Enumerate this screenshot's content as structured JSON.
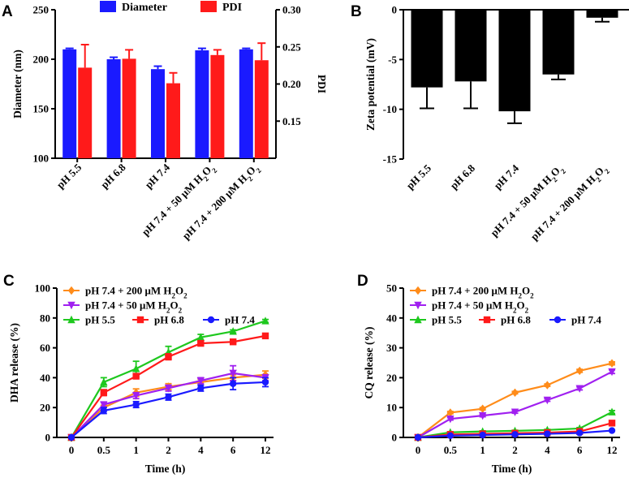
{
  "chart_data": [
    {
      "panel": "A",
      "type": "bar",
      "categories": [
        "pH 5.5",
        "pH 6.8",
        "pH 7.4",
        "pH 7.4 + 50 μM H₂O₂",
        "pH 7.4 + 200 μM H₂O₂"
      ],
      "ylabel": "Diameter (nm)",
      "y2label": "PDI",
      "ylim": [
        100,
        250
      ],
      "y2lim": [
        0.1,
        0.3
      ],
      "yticks": [
        "100",
        "150",
        "200",
        "250"
      ],
      "y2ticks": [
        "0.15",
        "0.20",
        "0.25",
        "0.30"
      ],
      "series": [
        {
          "name": "Diameter",
          "axis": "left",
          "color": "#1a1aff",
          "values": [
            210,
            200,
            190,
            209,
            210
          ],
          "err": [
            1.0,
            2.0,
            3.0,
            2.0,
            1.0
          ]
        },
        {
          "name": "PDI",
          "axis": "right",
          "color": "#ff1a1a",
          "values": [
            0.222,
            0.234,
            0.201,
            0.239,
            0.232
          ],
          "err": [
            0.031,
            0.012,
            0.014,
            0.007,
            0.023
          ]
        }
      ]
    },
    {
      "panel": "B",
      "type": "bar",
      "categories": [
        "pH 5.5",
        "pH 6.8",
        "pH 7.4",
        "pH 7.4 + 50 μM H₂O₂",
        "pH 7.4 + 200 μM H₂O₂"
      ],
      "ylabel": "Zeta potential (mV)",
      "ylim": [
        -15,
        0
      ],
      "yticks": [
        "-15",
        "-10",
        "-5",
        "0"
      ],
      "color": "#000000",
      "values": [
        -7.8,
        -7.2,
        -10.2,
        -6.5,
        -0.8
      ],
      "err": [
        2.1,
        2.7,
        1.2,
        0.5,
        0.4
      ]
    },
    {
      "panel": "C",
      "type": "line",
      "x": [
        "0",
        "0.5",
        "1",
        "2",
        "4",
        "6",
        "12"
      ],
      "xlabel": "Time (h)",
      "ylabel": "DHA release (%)",
      "ylim": [
        0,
        100
      ],
      "yticks": [
        "0",
        "20",
        "40",
        "60",
        "80",
        "100"
      ],
      "series": [
        {
          "name": "pH 7.4 + 200 μM H₂O₂",
          "color": "#ff8c1a",
          "marker": "diamond",
          "values": [
            0,
            20,
            30,
            34,
            37,
            40,
            42
          ],
          "err": [
            0,
            1.5,
            2.5,
            2,
            2,
            2,
            2.5
          ]
        },
        {
          "name": "pH 7.4 + 50 μM H₂O₂",
          "color": "#a020f0",
          "marker": "triangle-down",
          "values": [
            0,
            22,
            28,
            33,
            38,
            43,
            40
          ],
          "err": [
            0,
            1.5,
            2,
            2,
            2,
            5,
            2
          ]
        },
        {
          "name": "pH 5.5",
          "color": "#1ec81e",
          "marker": "triangle-up",
          "values": [
            0,
            37,
            46,
            57,
            67,
            71,
            78
          ],
          "err": [
            0,
            3,
            5,
            4,
            2,
            1,
            1
          ]
        },
        {
          "name": "pH 6.8",
          "color": "#ff1a1a",
          "marker": "square",
          "values": [
            0,
            30,
            41,
            54,
            63,
            64,
            68
          ],
          "err": [
            0,
            2,
            1,
            2,
            1,
            1,
            1
          ]
        },
        {
          "name": "pH 7.4",
          "color": "#1a1aff",
          "marker": "circle",
          "values": [
            0,
            18,
            22,
            27,
            33,
            36,
            37
          ],
          "err": [
            0,
            2,
            2,
            2,
            2,
            4,
            3
          ]
        }
      ]
    },
    {
      "panel": "D",
      "type": "line",
      "x": [
        "0",
        "0.5",
        "1",
        "2",
        "4",
        "6",
        "12"
      ],
      "xlabel": "Time (h)",
      "ylabel": "CQ release (%)",
      "ylim": [
        0,
        50
      ],
      "yticks": [
        "0",
        "10",
        "20",
        "30",
        "40",
        "50"
      ],
      "series": [
        {
          "name": "pH 7.4 + 200 μM H₂O₂",
          "color": "#ff8c1a",
          "marker": "diamond",
          "values": [
            0,
            8.3,
            9.6,
            15,
            17.5,
            22.3,
            24.8
          ],
          "err": [
            0,
            0.4,
            0.4,
            0.4,
            0.4,
            0.5,
            0.5
          ]
        },
        {
          "name": "pH 7.4 + 50 μM H₂O₂",
          "color": "#a020f0",
          "marker": "triangle-down",
          "values": [
            0,
            6.2,
            7.3,
            8.5,
            12.5,
            16.4,
            22
          ],
          "err": [
            0,
            0.4,
            0.4,
            0.4,
            0.4,
            0.5,
            0.6
          ]
        },
        {
          "name": "pH 5.5",
          "color": "#1ec81e",
          "marker": "triangle-up",
          "values": [
            0,
            1.7,
            2.0,
            2.2,
            2.5,
            3.0,
            8.5
          ],
          "err": [
            0,
            0.2,
            0.2,
            0.2,
            0.2,
            0.3,
            0.5
          ]
        },
        {
          "name": "pH 6.8",
          "color": "#ff1a1a",
          "marker": "square",
          "values": [
            0,
            1.0,
            1.2,
            1.4,
            1.6,
            2.0,
            4.8
          ],
          "err": [
            0,
            0.2,
            0.2,
            0.2,
            0.2,
            0.2,
            0.3
          ]
        },
        {
          "name": "pH 7.4",
          "color": "#1a1aff",
          "marker": "circle",
          "values": [
            0,
            0.6,
            0.8,
            1.0,
            1.2,
            1.5,
            2.3
          ],
          "err": [
            0,
            0.1,
            0.1,
            0.1,
            0.1,
            0.1,
            0.2
          ]
        }
      ]
    }
  ],
  "panel_labels": [
    "A",
    "B",
    "C",
    "D"
  ]
}
